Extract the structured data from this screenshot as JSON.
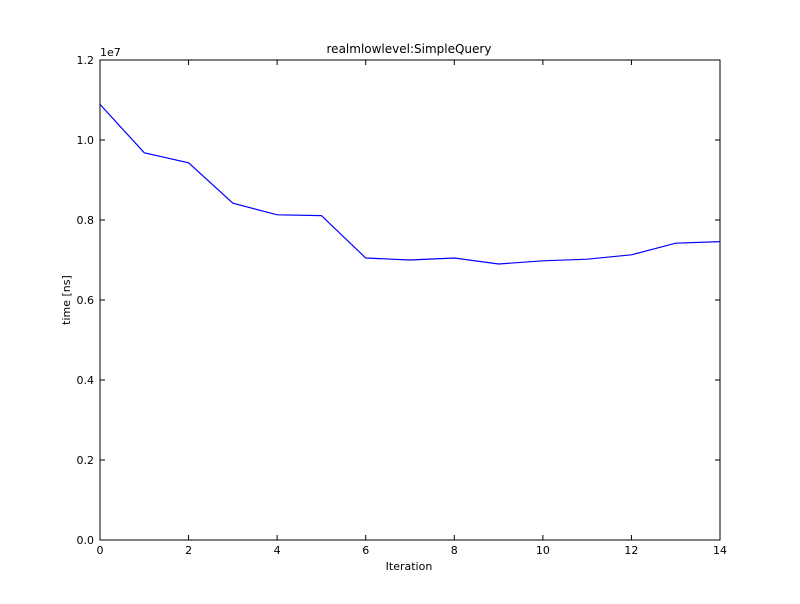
{
  "chart_data": {
    "type": "line",
    "title": "realmlowlevel:SimpleQuery",
    "xlabel": "Iteration",
    "ylabel": "time [ns]",
    "y_offset_label": "1e7",
    "xlim": [
      0,
      14
    ],
    "ylim": [
      0,
      1.2
    ],
    "y_scale_multiplier": 10000000,
    "x_ticks": [
      "0",
      "2",
      "4",
      "6",
      "8",
      "10",
      "12",
      "14"
    ],
    "y_ticks": [
      "0.0",
      "0.2",
      "0.4",
      "0.6",
      "0.8",
      "1.0",
      "1.2"
    ],
    "grid": false,
    "legend": "none",
    "series": [
      {
        "color": "#0000ff",
        "x": [
          0,
          1,
          2,
          3,
          4,
          5,
          6,
          7,
          8,
          9,
          10,
          11,
          12,
          13,
          14
        ],
        "y": [
          1.089,
          0.968,
          0.943,
          0.842,
          0.813,
          0.811,
          0.705,
          0.7,
          0.705,
          0.69,
          0.698,
          0.702,
          0.713,
          0.742,
          0.746
        ]
      }
    ]
  }
}
